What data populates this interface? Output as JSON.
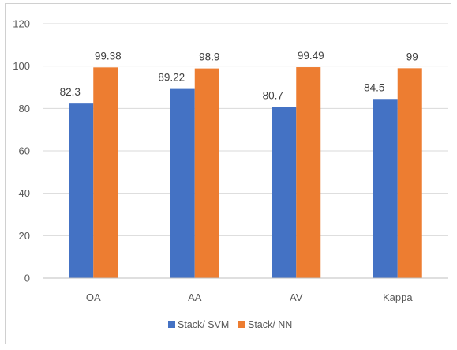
{
  "chart_data": {
    "type": "bar",
    "title": "",
    "xlabel": "",
    "ylabel": "",
    "categories": [
      "OA",
      "AA",
      "AV",
      "Kappa"
    ],
    "series": [
      {
        "name": "Stack/ SVM",
        "values": [
          82.3,
          89.22,
          80.7,
          84.5
        ],
        "labels": [
          "82.3",
          "89.22",
          "80.7",
          "84.5"
        ]
      },
      {
        "name": "Stack/ NN",
        "values": [
          99.38,
          98.9,
          99.49,
          99
        ],
        "labels": [
          "99.38",
          "98.9",
          "99.49",
          "99"
        ]
      }
    ],
    "ylim": [
      0,
      120
    ],
    "yticks": [
      0,
      20,
      40,
      60,
      80,
      100,
      120
    ],
    "grid": true,
    "legend_position": "bottom",
    "colors": {
      "Stack/ SVM": "#4472C4",
      "Stack/ NN": "#ED7D31",
      "grid": "#d9d9d9",
      "axis": "#bfbfbf"
    }
  }
}
